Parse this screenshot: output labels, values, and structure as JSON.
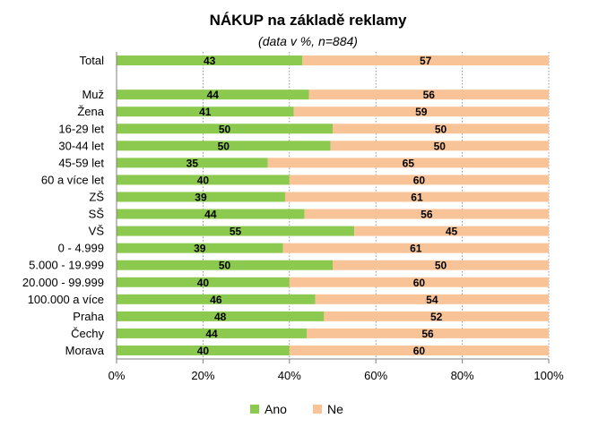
{
  "chart_data": {
    "type": "bar",
    "orientation": "horizontal",
    "stacked": true,
    "title": "NÁKUP na základě reklamy",
    "subtitle": "(data v %, n=884)",
    "categories": [
      "Total",
      "",
      "Muž",
      "Žena",
      "16-29 let",
      "30-44 let",
      "45-59 let",
      "60 a více let",
      "ZŠ",
      "SŠ",
      "VŠ",
      "0 - 4.999",
      "5.000 - 19.999",
      "20.000 - 99.999",
      "100.000 a více",
      "Praha",
      "Čechy",
      "Morava"
    ],
    "series": [
      {
        "name": "Ano",
        "color": "#8cc94f",
        "values": [
          43,
          null,
          44.5,
          41,
          50,
          49.5,
          35,
          40,
          39,
          43.5,
          55,
          38.5,
          50,
          40,
          46,
          48,
          44,
          40
        ],
        "labels": [
          "43",
          "",
          "44",
          "41",
          "50",
          "50",
          "35",
          "40",
          "39",
          "44",
          "55",
          "39",
          "50",
          "40",
          "46",
          "48",
          "44",
          "40"
        ]
      },
      {
        "name": "Ne",
        "color": "#f9c398",
        "values": [
          57,
          null,
          55.5,
          59,
          50,
          50.5,
          65,
          60,
          61,
          56.5,
          45,
          61.5,
          50,
          60,
          54,
          52,
          56,
          60
        ],
        "labels": [
          "57",
          "",
          "56",
          "59",
          "50",
          "50",
          "65",
          "60",
          "61",
          "56",
          "45",
          "61",
          "50",
          "60",
          "54",
          "52",
          "56",
          "60"
        ]
      }
    ],
    "xlim": [
      0,
      100
    ],
    "xticks": [
      "0%",
      "20%",
      "40%",
      "60%",
      "80%",
      "100%"
    ],
    "grid": "vertical dotted",
    "legend": "bottom"
  }
}
